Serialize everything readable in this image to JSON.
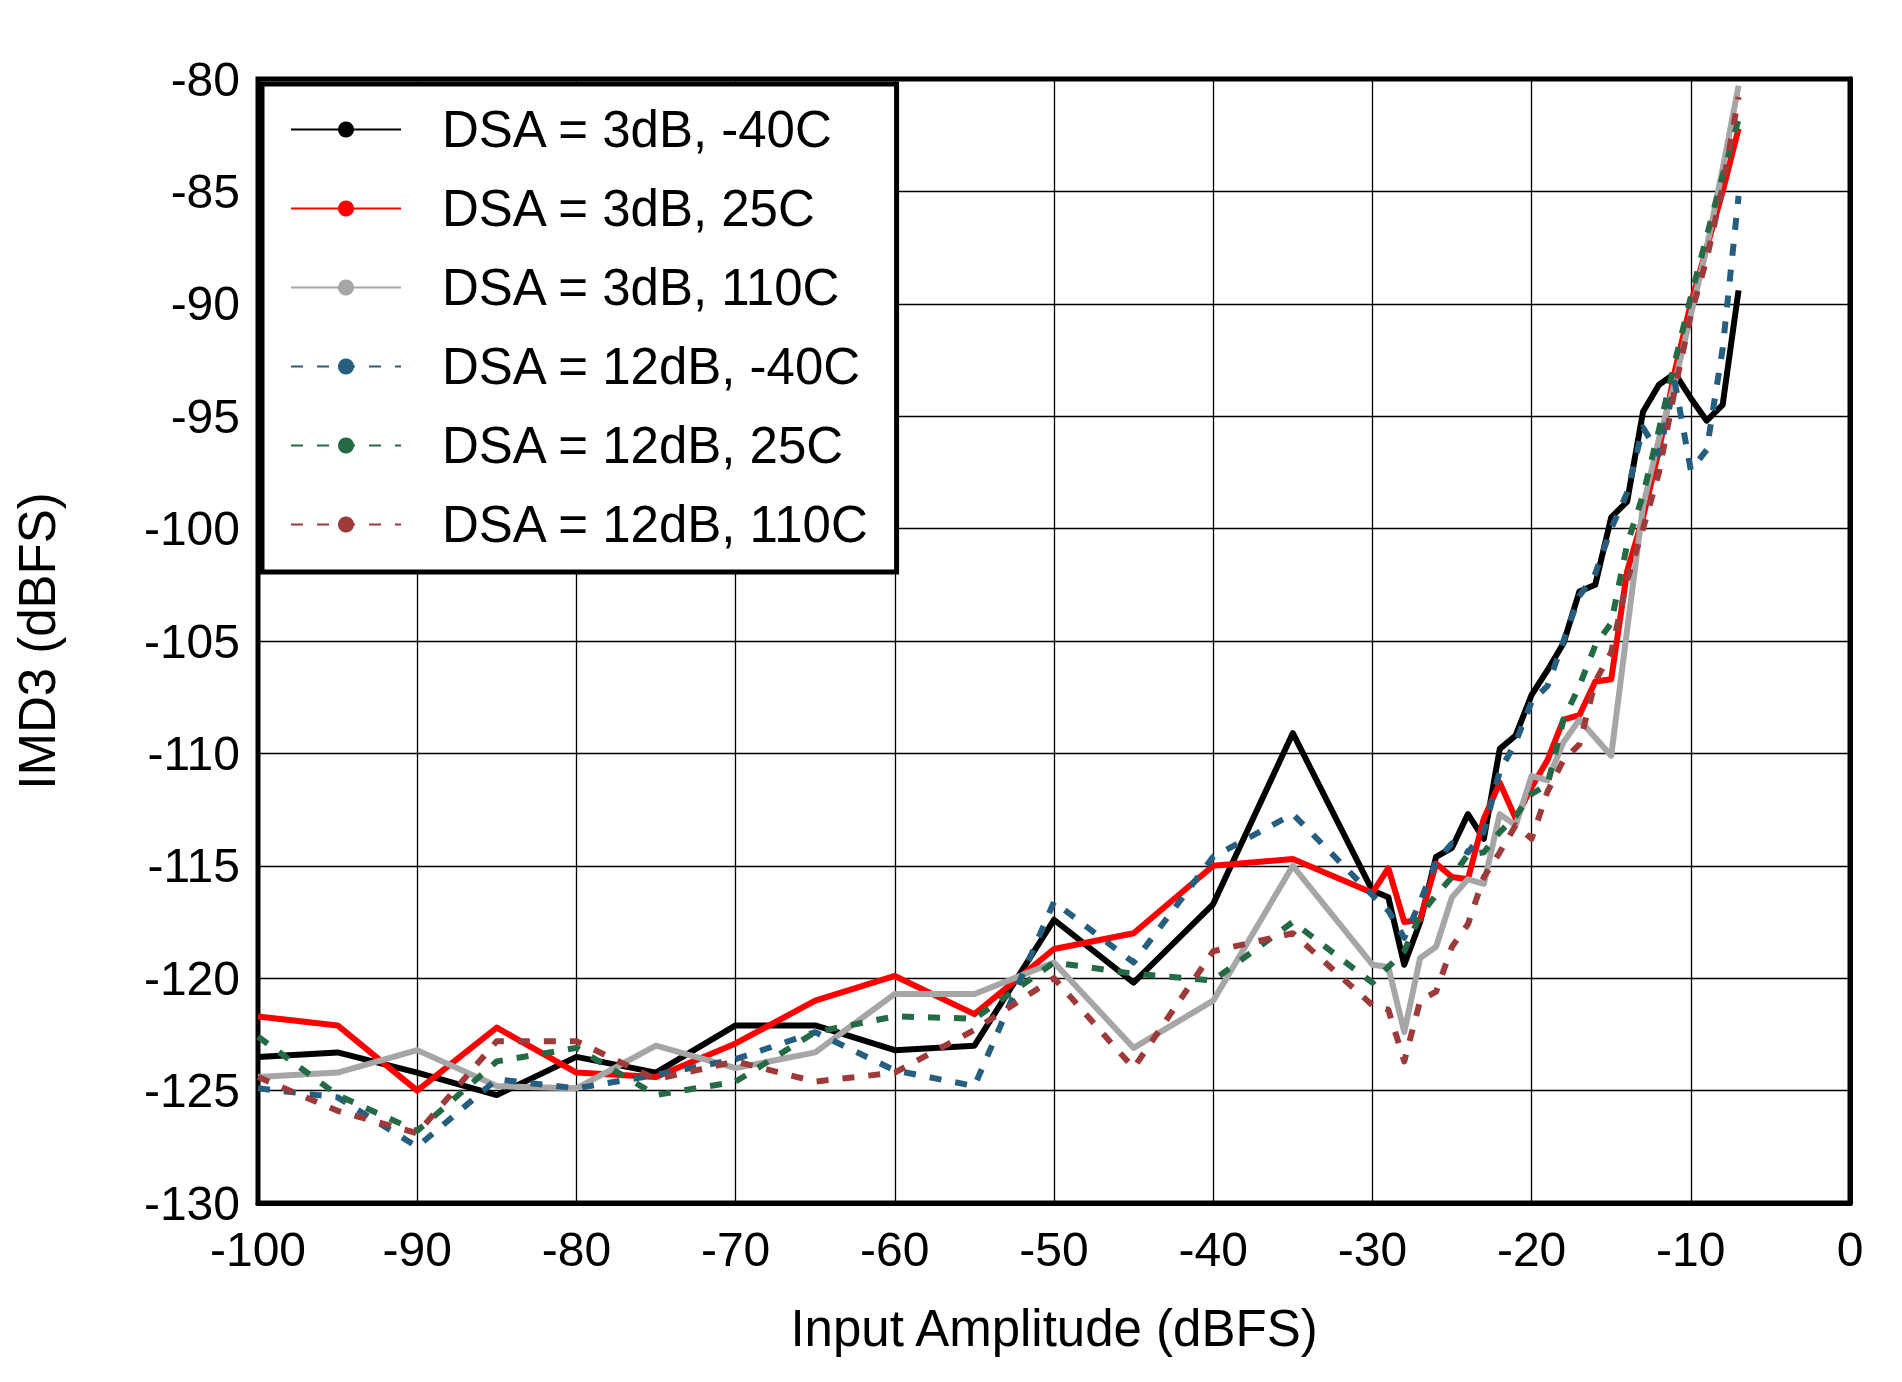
{
  "chart_data": {
    "type": "line",
    "xlabel": "Input Amplitude (dBFS)",
    "ylabel": "IMD3 (dBFS)",
    "x": [
      -100,
      -95,
      -90,
      -85,
      -80,
      -75,
      -70,
      -65,
      -60,
      -55,
      -50,
      -45,
      -40,
      -35,
      -30,
      -29,
      -28,
      -27,
      -26,
      -25,
      -24,
      -23,
      -22,
      -21,
      -20,
      -19,
      -18,
      -17,
      -16,
      -15,
      -14,
      -13,
      -12,
      -11,
      -10,
      -9,
      -8,
      -7
    ],
    "xlim": [
      -100,
      0
    ],
    "xticks": [
      -100,
      -90,
      -80,
      -70,
      -60,
      -50,
      -40,
      -30,
      -20,
      -10,
      0
    ],
    "ylim": [
      -130,
      -80
    ],
    "yticks": [
      -130,
      -125,
      -120,
      -115,
      -110,
      -105,
      -100,
      -95,
      -90,
      -85,
      -80
    ],
    "grid": true,
    "legend": "top left",
    "marker": "none",
    "series": [
      {
        "name": "DSA = 3dB, -40C",
        "color": "#000000",
        "line_style": "solid",
        "values": [
          -123.5,
          -123.3,
          -124.2,
          -125.2,
          -123.5,
          -124.2,
          -122.1,
          -122.1,
          -123.2,
          -123.0,
          -117.4,
          -120.2,
          -116.7,
          -109.1,
          -116.1,
          -116.4,
          -119.4,
          -117.5,
          -114.6,
          -114.2,
          -112.7,
          -113.8,
          -109.8,
          -109.2,
          -107.4,
          -106.3,
          -105.1,
          -102.8,
          -102.5,
          -99.5,
          -98.8,
          -94.8,
          -93.6,
          -93.1,
          -94.2,
          -95.2,
          -94.5,
          -89.4
        ]
      },
      {
        "name": "DSA = 3dB, 25C",
        "color": "#ff0000",
        "line_style": "solid",
        "values": [
          -121.7,
          -122.1,
          -125.0,
          -122.2,
          -124.2,
          -124.4,
          -122.9,
          -121.0,
          -119.9,
          -121.6,
          -118.7,
          -118.0,
          -115.0,
          -114.7,
          -116.2,
          -115.1,
          -117.5,
          -117.4,
          -114.9,
          -115.5,
          -115.6,
          -112.9,
          -111.3,
          -112.9,
          -111.5,
          -110.3,
          -108.5,
          -108.3,
          -106.8,
          -106.7,
          -101.9,
          -99.5,
          -96.5,
          -93.0,
          -90.0,
          -87.5,
          -85.0,
          -82.2
        ]
      },
      {
        "name": "DSA = 3dB, 110C",
        "color": "#a6a6a6",
        "line_style": "solid",
        "values": [
          -124.4,
          -124.2,
          -123.2,
          -124.8,
          -124.9,
          -123.0,
          -124.0,
          -123.3,
          -120.7,
          -120.7,
          -119.3,
          -123.1,
          -121.0,
          -115.0,
          -119.4,
          -119.5,
          -122.4,
          -119.1,
          -118.6,
          -116.4,
          -115.6,
          -115.8,
          -112.7,
          -113.2,
          -111.0,
          -111.2,
          -109.5,
          -108.5,
          -109.3,
          -110.1,
          -104.5,
          -99.0,
          -96.0,
          -93.5,
          -90.5,
          -87.5,
          -84.0,
          -80.3
        ]
      },
      {
        "name": "DSA = 12dB, -40C",
        "color": "#255e7e",
        "line_style": "dashed",
        "values": [
          -124.9,
          -125.3,
          -127.5,
          -124.5,
          -124.9,
          -124.3,
          -123.6,
          -122.4,
          -124.1,
          -124.8,
          -116.6,
          -119.3,
          -114.6,
          -112.7,
          -116.3,
          -117.0,
          -118.2,
          -116.6,
          -114.8,
          -114.0,
          -114.4,
          -113.5,
          -110.8,
          -109.5,
          -107.7,
          -107.0,
          -105.0,
          -103.0,
          -102.0,
          -100.0,
          -98.4,
          -95.5,
          -96.7,
          -93.5,
          -97.4,
          -96.5,
          -92.0,
          -85.2
        ]
      },
      {
        "name": "DSA = 12dB, 25C",
        "color": "#246b45",
        "line_style": "dashed",
        "values": [
          -122.6,
          -125.2,
          -126.8,
          -123.7,
          -123.1,
          -125.2,
          -124.6,
          -122.4,
          -121.7,
          -121.8,
          -119.3,
          -119.8,
          -120.1,
          -117.5,
          -120.2,
          -119.5,
          -118.8,
          -117.2,
          -116.3,
          -115.5,
          -114.5,
          -114.4,
          -113.5,
          -112.8,
          -111.8,
          -111.4,
          -108.5,
          -107.0,
          -105.2,
          -104.2,
          -100.7,
          -98.5,
          -95.6,
          -92.6,
          -89.7,
          -87.0,
          -84.3,
          -81.8
        ]
      },
      {
        "name": "DSA = 12dB, 110C",
        "color": "#9e3a3a",
        "line_style": "dashed",
        "values": [
          -124.4,
          -125.9,
          -126.9,
          -122.8,
          -122.8,
          -124.5,
          -123.7,
          -124.6,
          -124.2,
          -122.3,
          -120.0,
          -124.0,
          -118.8,
          -118.0,
          -121.2,
          -121.4,
          -123.7,
          -121.0,
          -120.6,
          -118.6,
          -117.6,
          -115.5,
          -114.4,
          -113.2,
          -113.8,
          -111.7,
          -110.3,
          -109.6,
          -106.8,
          -105.5,
          -102.3,
          -100.0,
          -97.5,
          -93.8,
          -90.5,
          -88.0,
          -84.8,
          -80.8
        ]
      }
    ]
  }
}
